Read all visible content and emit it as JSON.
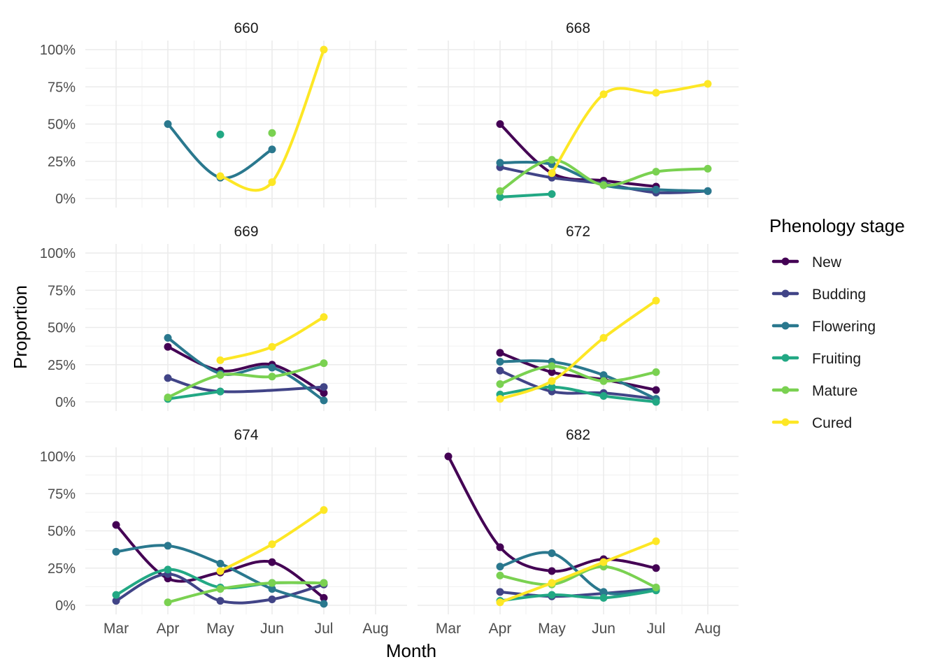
{
  "chart_data": {
    "type": "line",
    "xlabel": "Month",
    "ylabel": "Proportion",
    "months": [
      "Mar",
      "Apr",
      "May",
      "Jun",
      "Jul",
      "Aug"
    ],
    "y_ticks": [
      "0%",
      "25%",
      "50%",
      "75%",
      "100%"
    ],
    "ylim": [
      0,
      1
    ],
    "grid": true,
    "legend": {
      "title": "Phenology stage",
      "position": "right",
      "entries": [
        {
          "name": "New",
          "color": "#440154"
        },
        {
          "name": "Budding",
          "color": "#414487"
        },
        {
          "name": "Flowering",
          "color": "#2A788E"
        },
        {
          "name": "Fruiting",
          "color": "#22A884"
        },
        {
          "name": "Mature",
          "color": "#7AD151"
        },
        {
          "name": "Cured",
          "color": "#FDE725"
        }
      ]
    },
    "facets": [
      {
        "label": "660",
        "series": [
          {
            "name": "Flowering",
            "points": [
              [
                "Apr",
                0.5
              ],
              [
                "May",
                0.14
              ],
              [
                "Jun",
                0.33
              ]
            ]
          },
          {
            "name": "Fruiting",
            "points": [
              [
                "May",
                0.43
              ]
            ]
          },
          {
            "name": "Mature",
            "points": [
              [
                "Jun",
                0.44
              ]
            ]
          },
          {
            "name": "Cured",
            "points": [
              [
                "May",
                0.15
              ],
              [
                "Jun",
                0.11
              ],
              [
                "Jul",
                1.0
              ]
            ]
          }
        ]
      },
      {
        "label": "668",
        "series": [
          {
            "name": "New",
            "points": [
              [
                "Apr",
                0.5
              ],
              [
                "May",
                0.17
              ],
              [
                "Jun",
                0.12
              ],
              [
                "Jul",
                0.08
              ]
            ]
          },
          {
            "name": "Budding",
            "points": [
              [
                "Apr",
                0.21
              ],
              [
                "May",
                0.14
              ],
              [
                "Jun",
                0.1
              ],
              [
                "Jul",
                0.04
              ],
              [
                "Aug",
                0.05
              ]
            ]
          },
          {
            "name": "Flowering",
            "points": [
              [
                "Apr",
                0.24
              ],
              [
                "May",
                0.23
              ],
              [
                "Jun",
                0.09
              ],
              [
                "Jul",
                0.06
              ],
              [
                "Aug",
                0.05
              ]
            ]
          },
          {
            "name": "Fruiting",
            "points": [
              [
                "Apr",
                0.01
              ],
              [
                "May",
                0.03
              ]
            ]
          },
          {
            "name": "Mature",
            "points": [
              [
                "Apr",
                0.05
              ],
              [
                "May",
                0.26
              ],
              [
                "Jun",
                0.09
              ],
              [
                "Jul",
                0.18
              ],
              [
                "Aug",
                0.2
              ]
            ]
          },
          {
            "name": "Cured",
            "points": [
              [
                "May",
                0.17
              ],
              [
                "Jun",
                0.7
              ],
              [
                "Jul",
                0.71
              ],
              [
                "Aug",
                0.77
              ]
            ]
          }
        ]
      },
      {
        "label": "669",
        "series": [
          {
            "name": "New",
            "points": [
              [
                "Apr",
                0.37
              ],
              [
                "May",
                0.21
              ],
              [
                "Jun",
                0.25
              ],
              [
                "Jul",
                0.06
              ]
            ]
          },
          {
            "name": "Budding",
            "points": [
              [
                "Apr",
                0.16
              ],
              [
                "May",
                0.07
              ],
              [
                "Jul",
                0.1
              ]
            ]
          },
          {
            "name": "Flowering",
            "points": [
              [
                "Apr",
                0.43
              ],
              [
                "May",
                0.19
              ],
              [
                "Jun",
                0.23
              ],
              [
                "Jul",
                0.01
              ]
            ]
          },
          {
            "name": "Fruiting",
            "points": [
              [
                "Apr",
                0.02
              ],
              [
                "May",
                0.07
              ]
            ]
          },
          {
            "name": "Mature",
            "points": [
              [
                "Apr",
                0.03
              ],
              [
                "May",
                0.18
              ],
              [
                "Jun",
                0.17
              ],
              [
                "Jul",
                0.26
              ]
            ]
          },
          {
            "name": "Cured",
            "points": [
              [
                "May",
                0.28
              ],
              [
                "Jun",
                0.37
              ],
              [
                "Jul",
                0.57
              ]
            ]
          }
        ]
      },
      {
        "label": "672",
        "series": [
          {
            "name": "New",
            "points": [
              [
                "Apr",
                0.33
              ],
              [
                "May",
                0.2
              ],
              [
                "Jun",
                0.15
              ],
              [
                "Jul",
                0.08
              ]
            ]
          },
          {
            "name": "Budding",
            "points": [
              [
                "Apr",
                0.21
              ],
              [
                "May",
                0.07
              ],
              [
                "Jun",
                0.06
              ],
              [
                "Jul",
                0.02
              ]
            ]
          },
          {
            "name": "Flowering",
            "points": [
              [
                "Apr",
                0.27
              ],
              [
                "May",
                0.27
              ],
              [
                "Jun",
                0.18
              ],
              [
                "Jul",
                0.02
              ]
            ]
          },
          {
            "name": "Fruiting",
            "points": [
              [
                "Apr",
                0.05
              ],
              [
                "May",
                0.1
              ],
              [
                "Jun",
                0.04
              ],
              [
                "Jul",
                0.0
              ]
            ]
          },
          {
            "name": "Mature",
            "points": [
              [
                "Apr",
                0.12
              ],
              [
                "May",
                0.24
              ],
              [
                "Jun",
                0.14
              ],
              [
                "Jul",
                0.2
              ]
            ]
          },
          {
            "name": "Cured",
            "points": [
              [
                "Apr",
                0.02
              ],
              [
                "May",
                0.14
              ],
              [
                "Jun",
                0.43
              ],
              [
                "Jul",
                0.68
              ]
            ]
          }
        ]
      },
      {
        "label": "674",
        "series": [
          {
            "name": "New",
            "points": [
              [
                "Mar",
                0.54
              ],
              [
                "Apr",
                0.18
              ],
              [
                "May",
                0.22
              ],
              [
                "Jun",
                0.29
              ],
              [
                "Jul",
                0.05
              ]
            ]
          },
          {
            "name": "Budding",
            "points": [
              [
                "Mar",
                0.03
              ],
              [
                "Apr",
                0.21
              ],
              [
                "May",
                0.03
              ],
              [
                "Jun",
                0.04
              ],
              [
                "Jul",
                0.14
              ]
            ]
          },
          {
            "name": "Flowering",
            "points": [
              [
                "Mar",
                0.36
              ],
              [
                "Apr",
                0.4
              ],
              [
                "May",
                0.28
              ],
              [
                "Jun",
                0.11
              ],
              [
                "Jul",
                0.01
              ]
            ]
          },
          {
            "name": "Fruiting",
            "points": [
              [
                "Mar",
                0.07
              ],
              [
                "Apr",
                0.24
              ],
              [
                "May",
                0.12
              ],
              [
                "Jun",
                0.15
              ],
              [
                "Jul",
                0.15
              ]
            ]
          },
          {
            "name": "Mature",
            "points": [
              [
                "Apr",
                0.02
              ],
              [
                "May",
                0.11
              ],
              [
                "Jun",
                0.15
              ],
              [
                "Jul",
                0.15
              ]
            ]
          },
          {
            "name": "Cured",
            "points": [
              [
                "May",
                0.23
              ],
              [
                "Jun",
                0.41
              ],
              [
                "Jul",
                0.64
              ]
            ]
          }
        ]
      },
      {
        "label": "682",
        "series": [
          {
            "name": "New",
            "points": [
              [
                "Mar",
                1.0
              ],
              [
                "Apr",
                0.39
              ],
              [
                "May",
                0.23
              ],
              [
                "Jun",
                0.31
              ],
              [
                "Jul",
                0.25
              ]
            ]
          },
          {
            "name": "Budding",
            "points": [
              [
                "Apr",
                0.09
              ],
              [
                "May",
                0.06
              ],
              [
                "Jun",
                0.08
              ],
              [
                "Jul",
                0.11
              ]
            ]
          },
          {
            "name": "Flowering",
            "points": [
              [
                "Apr",
                0.26
              ],
              [
                "May",
                0.35
              ],
              [
                "Jun",
                0.09
              ],
              [
                "Jul",
                0.11
              ]
            ]
          },
          {
            "name": "Fruiting",
            "points": [
              [
                "Apr",
                0.03
              ],
              [
                "May",
                0.07
              ],
              [
                "Jun",
                0.05
              ],
              [
                "Jul",
                0.1
              ]
            ]
          },
          {
            "name": "Mature",
            "points": [
              [
                "Apr",
                0.2
              ],
              [
                "May",
                0.14
              ],
              [
                "Jun",
                0.26
              ],
              [
                "Jul",
                0.12
              ]
            ]
          },
          {
            "name": "Cured",
            "points": [
              [
                "Apr",
                0.02
              ],
              [
                "May",
                0.15
              ],
              [
                "Jun",
                0.29
              ],
              [
                "Jul",
                0.43
              ]
            ]
          }
        ]
      }
    ]
  }
}
